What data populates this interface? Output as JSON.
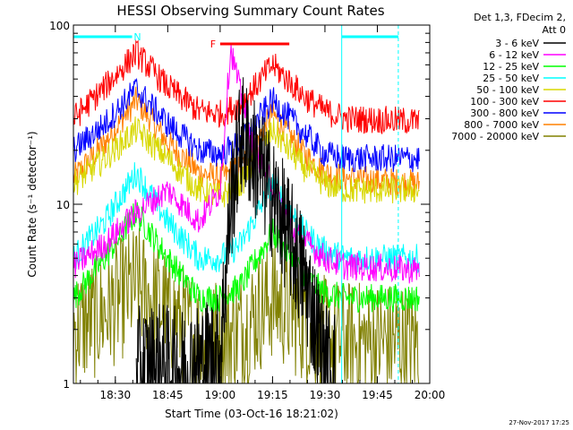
{
  "chart_data": {
    "type": "line",
    "title": "HESSI Observing Summary Count Rates",
    "xlabel": "Start Time (03-Oct-16 18:21:02)",
    "ylabel": "Count Rate (s⁻¹ detector⁻¹)",
    "yscale": "log",
    "ylim": [
      1,
      100
    ],
    "xlim_minutes": [
      18.3,
      20.0
    ],
    "x_ticks": [
      "18:30",
      "18:45",
      "19:00",
      "19:15",
      "19:30",
      "19:45",
      "20:00"
    ],
    "x_tick_hours": [
      18.5,
      18.75,
      19.0,
      19.25,
      19.5,
      19.75,
      20.0
    ],
    "y_ticks": [
      "1",
      "10",
      "100"
    ],
    "y_tick_values": [
      1,
      10,
      100
    ],
    "legend_header": [
      "Det 1,3, FDecim 2,",
      "Att 0"
    ],
    "legend_position": "right",
    "timestamp": "27-Nov-2017 17:25",
    "series": [
      {
        "name": "3 - 6 keV",
        "color": "#000000",
        "x": [
          18.6,
          18.7,
          18.8,
          18.9,
          19.0,
          19.05,
          19.1,
          19.2,
          19.3,
          19.4,
          19.5,
          19.55
        ],
        "y": [
          1.2,
          1.3,
          1.2,
          1.3,
          1.5,
          10,
          25,
          15,
          8,
          4,
          1.3,
          1.2
        ]
      },
      {
        "name": "6 - 12 keV",
        "color": "#ff00ff",
        "x": [
          18.3,
          18.45,
          18.6,
          18.75,
          18.9,
          19.0,
          19.05,
          19.1,
          19.15,
          19.25,
          19.35,
          19.5,
          19.6,
          19.95
        ],
        "y": [
          4.5,
          6,
          9,
          12,
          8,
          12,
          75,
          40,
          22,
          13,
          7,
          5,
          4.5,
          4.3
        ]
      },
      {
        "name": "12 - 25 keV",
        "color": "#00ff00",
        "x": [
          18.3,
          18.45,
          18.6,
          18.75,
          18.9,
          19.0,
          19.1,
          19.25,
          19.4,
          19.5,
          19.6,
          19.95
        ],
        "y": [
          3,
          5,
          9,
          5,
          3,
          3,
          3.5,
          7,
          4,
          3.2,
          3,
          3
        ]
      },
      {
        "name": "25 - 50 keV",
        "color": "#00ffff",
        "x": [
          18.3,
          18.45,
          18.6,
          18.75,
          18.9,
          19.0,
          19.1,
          19.25,
          19.4,
          19.5,
          19.6,
          19.95
        ],
        "y": [
          5,
          8,
          15,
          8,
          5,
          5,
          6,
          13,
          7,
          5.5,
          5,
          5
        ]
      },
      {
        "name": "50 - 100 keV",
        "color": "#d8d800",
        "x": [
          18.3,
          18.45,
          18.6,
          18.75,
          18.9,
          19.0,
          19.1,
          19.25,
          19.4,
          19.5,
          19.6,
          19.95
        ],
        "y": [
          13,
          18,
          26,
          18,
          12,
          11,
          13,
          26,
          16,
          13,
          12,
          12
        ]
      },
      {
        "name": "100 - 300 keV",
        "color": "#ff0000",
        "x": [
          18.3,
          18.45,
          18.6,
          18.75,
          18.9,
          19.0,
          19.1,
          19.25,
          19.4,
          19.5,
          19.6,
          19.95
        ],
        "y": [
          30,
          45,
          70,
          45,
          33,
          32,
          36,
          60,
          40,
          33,
          30,
          29
        ]
      },
      {
        "name": "300 - 800 keV",
        "color": "#0000ff",
        "x": [
          18.3,
          18.45,
          18.6,
          18.75,
          18.9,
          19.0,
          19.1,
          19.25,
          19.4,
          19.5,
          19.6,
          19.95
        ],
        "y": [
          20,
          28,
          44,
          28,
          20,
          19,
          22,
          38,
          25,
          19,
          18,
          18
        ]
      },
      {
        "name": "800 - 7000 keV",
        "color": "#ff8000",
        "x": [
          18.3,
          18.45,
          18.6,
          18.75,
          18.9,
          19.0,
          19.1,
          19.25,
          19.4,
          19.5,
          19.6,
          19.95
        ],
        "y": [
          14,
          22,
          38,
          22,
          15,
          14,
          16,
          32,
          19,
          15,
          14,
          13
        ]
      },
      {
        "name": "7000 - 20000 keV",
        "color": "#808000",
        "x": [
          18.3,
          18.45,
          18.6,
          18.75,
          18.9,
          19.0,
          19.1,
          19.25,
          19.4,
          19.5,
          19.6,
          19.95
        ],
        "y": [
          2,
          2.5,
          3.5,
          2.5,
          1.8,
          1.8,
          2,
          3,
          2.2,
          1.8,
          1.7,
          1.7
        ]
      }
    ],
    "annotations": [
      {
        "label": "N",
        "color": "#00ffff",
        "x_start": 18.3,
        "x_end": 18.58,
        "y": 95
      },
      {
        "label": "",
        "color": "#00ffff",
        "x_start": 19.58,
        "x_end": 19.85,
        "y": 95
      },
      {
        "label": "F",
        "color": "#ff0000",
        "x_start": 19.0,
        "x_end": 19.33,
        "y": 80
      }
    ],
    "vertical_markers": [
      {
        "x": 19.58,
        "color": "#00ffff",
        "style": "solid"
      },
      {
        "x": 19.85,
        "color": "#00ffff",
        "style": "dashed"
      }
    ]
  }
}
